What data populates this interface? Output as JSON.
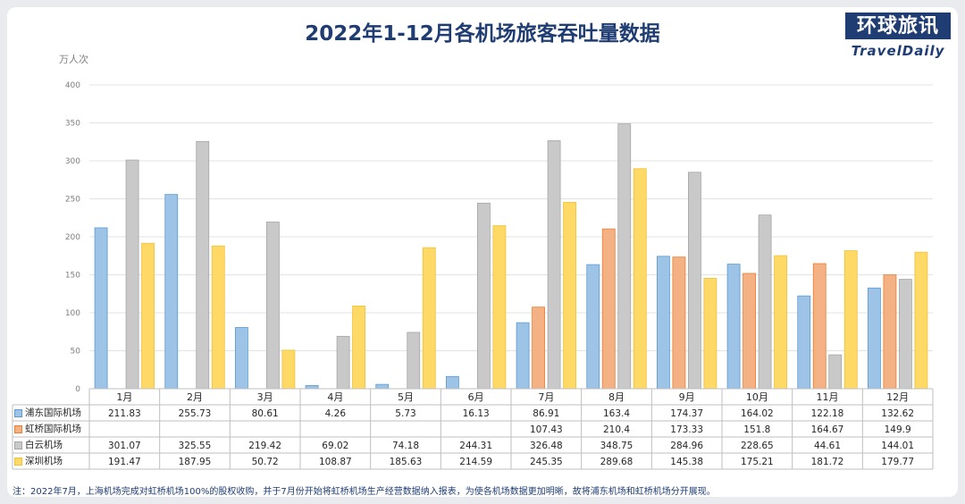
{
  "header": {
    "title": "2022年1-12月各机场旅客吞吐量数据",
    "logo_cn": "环球旅讯",
    "logo_en": "TravelDaily"
  },
  "colors": {
    "series": [
      "#9dc3e6",
      "#f4b183",
      "#c9c9c9",
      "#ffd966"
    ],
    "series_stroke": [
      "#5b9bd5",
      "#ed7d31",
      "#a5a5a5",
      "#f2c038"
    ],
    "title": "#1f3d73"
  },
  "chart_data": {
    "type": "bar",
    "ylabel": "万人次",
    "ylim": [
      0,
      400
    ],
    "yticks": [
      0,
      50,
      100,
      150,
      200,
      250,
      300,
      350,
      400
    ],
    "grid": true,
    "legend": "data-table-left",
    "categories": [
      "1月",
      "2月",
      "3月",
      "4月",
      "5月",
      "6月",
      "7月",
      "8月",
      "9月",
      "10月",
      "11月",
      "12月"
    ],
    "series": [
      {
        "name": "浦东国际机场",
        "values": [
          211.83,
          255.73,
          80.61,
          4.26,
          5.73,
          16.13,
          86.91,
          163.4,
          174.37,
          164.02,
          122.18,
          132.62
        ]
      },
      {
        "name": "虹桥国际机场",
        "values": [
          null,
          null,
          null,
          null,
          null,
          null,
          107.43,
          210.4,
          173.33,
          151.8,
          164.67,
          149.9
        ]
      },
      {
        "name": "白云机场",
        "values": [
          301.07,
          325.55,
          219.42,
          69.02,
          74.18,
          244.31,
          326.48,
          348.75,
          284.96,
          228.65,
          44.61,
          144.01
        ]
      },
      {
        "name": "深圳机场",
        "values": [
          191.47,
          187.95,
          50.72,
          108.87,
          185.63,
          214.59,
          245.35,
          289.68,
          145.38,
          175.21,
          181.72,
          179.77
        ]
      }
    ]
  },
  "footnote": "注：2022年7月，上海机场完成对虹桥机场100%的股权收购，并于7月份开始将虹桥机场生产经营数据纳入报表，为使各机场数据更加明晰，故将浦东机场和虹桥机场分开展现。"
}
